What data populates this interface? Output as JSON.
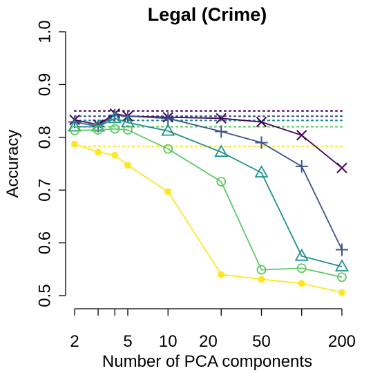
{
  "chart_data": {
    "type": "line",
    "title": "Legal (Crime)",
    "xlabel": "Number of PCA components",
    "ylabel": "Accuracy",
    "xscale": "log",
    "xlim": [
      2,
      200
    ],
    "ylim": [
      0.5,
      1.0
    ],
    "x_ticks": [
      2,
      5,
      10,
      20,
      50,
      200
    ],
    "x_tick_labels": [
      "2",
      "5",
      "10",
      "20",
      "50",
      "200"
    ],
    "y_ticks": [
      0.5,
      0.6,
      0.7,
      0.8,
      0.9,
      1.0
    ],
    "y_tick_labels": [
      "0.5",
      "0.6",
      "0.7",
      "0.8",
      "0.9",
      "1.0"
    ],
    "grid": false,
    "legend": "none",
    "x": [
      2,
      3,
      4,
      5,
      10,
      25,
      50,
      100,
      200
    ],
    "series": [
      {
        "color": "#440154",
        "marker": "x",
        "values": [
          0.833,
          0.824,
          0.845,
          0.84,
          0.838,
          0.836,
          0.829,
          0.804,
          0.742
        ],
        "baseline": 0.85
      },
      {
        "color": "#3b528b",
        "marker": "plus",
        "values": [
          0.829,
          0.821,
          0.842,
          0.84,
          0.836,
          0.811,
          0.79,
          0.745,
          0.587
        ],
        "baseline": 0.84
      },
      {
        "color": "#21908c",
        "marker": "triangle",
        "values": [
          0.82,
          0.82,
          0.836,
          0.828,
          0.812,
          0.772,
          0.733,
          0.575,
          0.555
        ],
        "baseline": 0.832
      },
      {
        "color": "#5ec962",
        "marker": "circle-open",
        "values": [
          0.813,
          0.814,
          0.816,
          0.814,
          0.778,
          0.716,
          0.549,
          0.552,
          0.535
        ],
        "baseline": 0.82
      },
      {
        "color": "#fde725",
        "marker": "circle-filled",
        "values": [
          0.787,
          0.772,
          0.766,
          0.747,
          0.697,
          0.54,
          0.531,
          0.523,
          0.506
        ],
        "baseline": 0.783
      }
    ]
  }
}
